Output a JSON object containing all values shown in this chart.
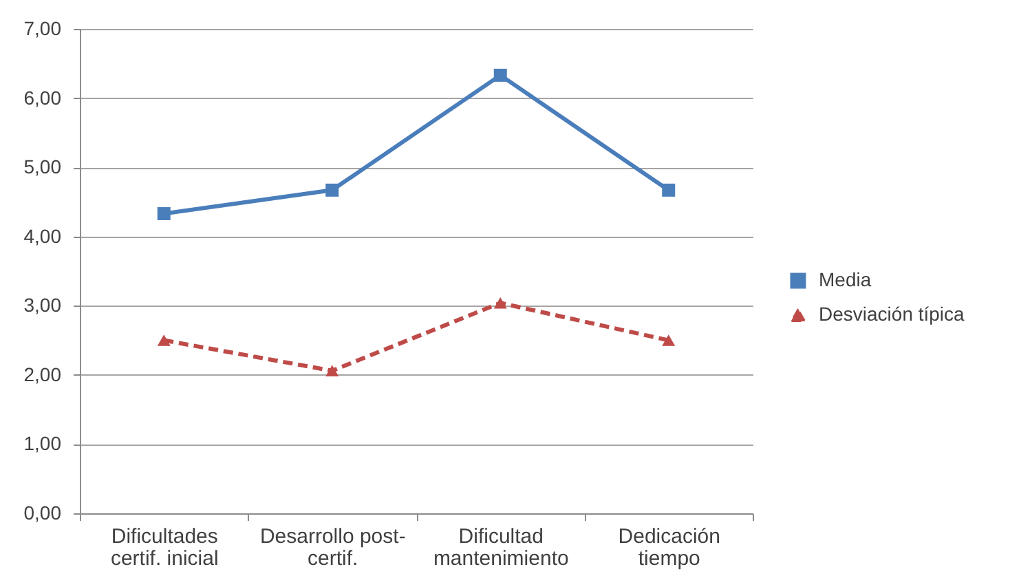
{
  "chart_data": {
    "type": "line",
    "categories": [
      "Dificultades certif. inicial",
      "Desarrollo post-certif.",
      "Dificultad mantenimiento",
      "Dedicación tiempo"
    ],
    "series": [
      {
        "name": "Media",
        "color": "#4a7ebb",
        "values": [
          4.33,
          4.67,
          6.33,
          4.67
        ],
        "marker": "square",
        "line_style": "solid"
      },
      {
        "name": "Desviación típica",
        "color": "#be4b48",
        "values": [
          2.5,
          2.06,
          3.04,
          2.5
        ],
        "marker": "triangle",
        "line_style": "dashed"
      }
    ],
    "ylim": [
      0,
      7
    ],
    "yticks": [
      {
        "value": 0,
        "label": "0,00"
      },
      {
        "value": 1,
        "label": "1,00"
      },
      {
        "value": 2,
        "label": "2,00"
      },
      {
        "value": 3,
        "label": "3,00"
      },
      {
        "value": 4,
        "label": "4,00"
      },
      {
        "value": 5,
        "label": "5,00"
      },
      {
        "value": 6,
        "label": "6,00"
      },
      {
        "value": 7,
        "label": "7,00"
      }
    ],
    "grid": "y",
    "legend": "right"
  }
}
